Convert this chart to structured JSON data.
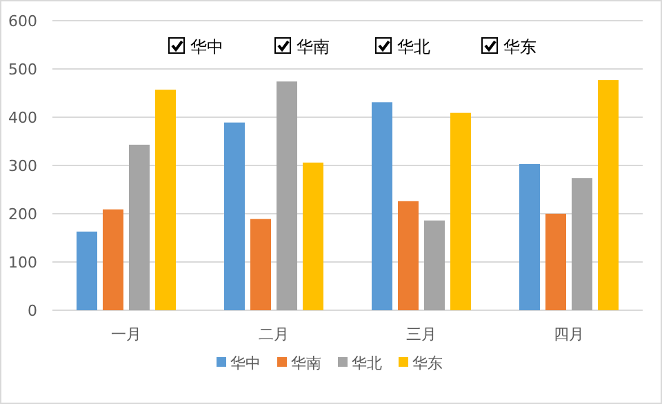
{
  "chart_data": {
    "type": "bar",
    "categories": [
      "一月",
      "二月",
      "三月",
      "四月"
    ],
    "series": [
      {
        "name": "华中",
        "color": "#5b9bd5",
        "values": [
          163,
          389,
          431,
          303
        ]
      },
      {
        "name": "华南",
        "color": "#ed7d31",
        "values": [
          209,
          189,
          226,
          200
        ]
      },
      {
        "name": "华北",
        "color": "#a5a5a5",
        "values": [
          343,
          474,
          186,
          274
        ]
      },
      {
        "name": "华东",
        "color": "#ffc000",
        "values": [
          457,
          306,
          409,
          477
        ]
      }
    ],
    "ylim": [
      0,
      600
    ],
    "yticks": [
      0,
      100,
      200,
      300,
      400,
      500,
      600
    ],
    "grid": "y",
    "legend": "bottom",
    "annotations": [
      "华中",
      "华南",
      "华北",
      "华东"
    ]
  }
}
